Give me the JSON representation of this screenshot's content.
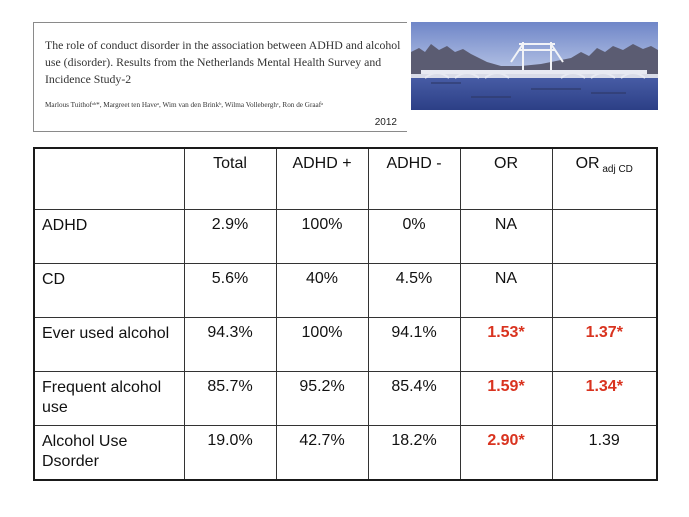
{
  "header": {
    "paper_title": "The role of conduct disorder in the association between ADHD and alcohol use (disorder). Results from the Netherlands Mental Health Survey and Incidence Study-2",
    "authors": "Marlous Tuithofᵃᵇ*, Margreet ten Haveᵃ, Wim van den Brinkᵇ, Wilma Volleberghᶜ, Ron de Graafᵃ",
    "year": "2012"
  },
  "table": {
    "columns": [
      {
        "label": "",
        "sub": ""
      },
      {
        "label": "Total",
        "sub": ""
      },
      {
        "label": "ADHD +",
        "sub": ""
      },
      {
        "label": "ADHD -",
        "sub": ""
      },
      {
        "label": "OR",
        "sub": ""
      },
      {
        "label": "OR",
        "sub": " adj CD"
      }
    ],
    "rows": [
      {
        "label": "ADHD",
        "total": "2.9%",
        "adhd_pos": "100%",
        "adhd_neg": "0%",
        "or": "NA",
        "or_adj": ""
      },
      {
        "label": "CD",
        "total": "5.6%",
        "adhd_pos": "40%",
        "adhd_neg": "4.5%",
        "or": "NA",
        "or_adj": ""
      },
      {
        "label": "Ever used alcohol",
        "total": "94.3%",
        "adhd_pos": "100%",
        "adhd_neg": "94.1%",
        "or": "1.53*",
        "or_adj": "1.37*"
      },
      {
        "label": "Frequent alcohol use",
        "total": "85.7%",
        "adhd_pos": "95.2%",
        "adhd_neg": "85.4%",
        "or": "1.59*",
        "or_adj": "1.34*"
      },
      {
        "label": "Alcohol Use Dsorder",
        "total": "19.0%",
        "adhd_pos": "42.7%",
        "adhd_neg": "18.2%",
        "or": "2.90*",
        "or_adj": "1.39"
      }
    ]
  },
  "colors": {
    "significant": "#d9331f",
    "text": "#111111",
    "border": "#333333"
  }
}
